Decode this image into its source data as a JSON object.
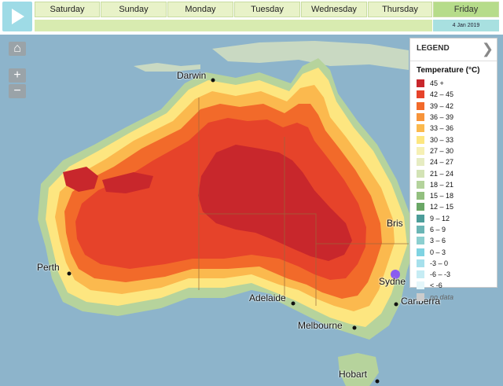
{
  "days": [
    {
      "label": "Saturday",
      "date": ""
    },
    {
      "label": "Sunday",
      "date": ""
    },
    {
      "label": "Monday",
      "date": ""
    },
    {
      "label": "Tuesday",
      "date": ""
    },
    {
      "label": "Wednesday",
      "date": ""
    },
    {
      "label": "Thursday",
      "date": ""
    },
    {
      "label": "Friday",
      "date": "4 Jan 2019"
    }
  ],
  "legend": {
    "title": "LEGEND",
    "subtitle": "Temperature (°C)",
    "items": [
      {
        "label": "45 +",
        "color": "#c8272c"
      },
      {
        "label": "42 – 45",
        "color": "#e6432a"
      },
      {
        "label": "39 – 42",
        "color": "#f26a2a"
      },
      {
        "label": "36 – 39",
        "color": "#f7943a"
      },
      {
        "label": "33 – 36",
        "color": "#fbb94e"
      },
      {
        "label": "30 – 33",
        "color": "#fde680"
      },
      {
        "label": "27 – 30",
        "color": "#f6f0b4"
      },
      {
        "label": "24 – 27",
        "color": "#e6ecc2"
      },
      {
        "label": "21 – 24",
        "color": "#d3e3b5"
      },
      {
        "label": "18 – 21",
        "color": "#b4d39c"
      },
      {
        "label": "15 – 18",
        "color": "#93c07f"
      },
      {
        "label": "12 – 15",
        "color": "#6aa766"
      },
      {
        "label": "9 – 12",
        "color": "#4c9d9a"
      },
      {
        "label": "6 – 9",
        "color": "#6bb5b5"
      },
      {
        "label": "3 – 6",
        "color": "#8ccfd0"
      },
      {
        "label": "0 – 3",
        "color": "#7fd3e2"
      },
      {
        "label": "-3 – 0",
        "color": "#a6e0ec"
      },
      {
        "label": "-6 – -3",
        "color": "#c6ecf4"
      },
      {
        "label": "< -6",
        "color": "#e4f6fa"
      },
      {
        "label": "no data",
        "color": "#cccccc"
      }
    ]
  },
  "cities": [
    {
      "name": "Darwin"
    },
    {
      "name": "Perth"
    },
    {
      "name": "Adelaide"
    },
    {
      "name": "Melbourne"
    },
    {
      "name": "Canberra"
    },
    {
      "name": "Hobart"
    },
    {
      "name": "Brisbane",
      "display": "Bris"
    },
    {
      "name": "Sydney",
      "display": "Sydne"
    }
  ],
  "map_controls": {
    "zoom_in": "+",
    "zoom_out": "−"
  }
}
